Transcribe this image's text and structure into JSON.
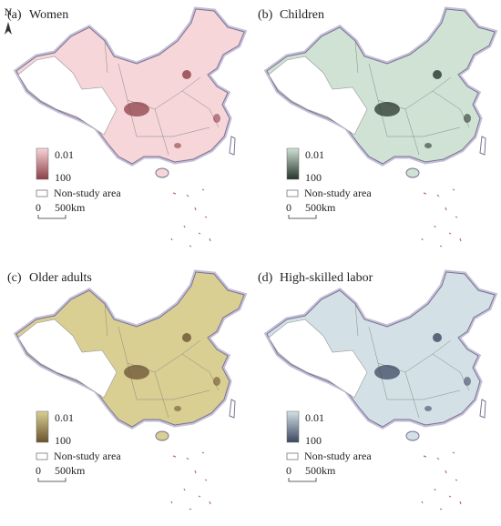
{
  "north_label": "N",
  "panels": [
    {
      "label": "(a)",
      "title": "Women",
      "legend": {
        "min": 0.01,
        "max": 100,
        "color_low": "#f6d6d8",
        "color_high": "#8c3f48"
      },
      "non_study": "Non-study area",
      "scale_bar": {
        "start": 0,
        "end": "500km"
      }
    },
    {
      "label": "(b)",
      "title": "Children",
      "legend": {
        "min": 0.01,
        "max": 100,
        "color_low": "#cfe2d4",
        "color_high": "#27352b"
      },
      "non_study": "Non-study area",
      "scale_bar": {
        "start": 0,
        "end": "500km"
      }
    },
    {
      "label": "(c)",
      "title": "Older adults",
      "legend": {
        "min": 0.01,
        "max": 100,
        "color_low": "#d9cf92",
        "color_high": "#6a5331"
      },
      "non_study": "Non-study area",
      "scale_bar": {
        "start": 0,
        "end": "500km"
      }
    },
    {
      "label": "(d)",
      "title": "High-skilled labor",
      "legend": {
        "min": 0.01,
        "max": 100,
        "color_low": "#d3e1e6",
        "color_high": "#3c4760"
      },
      "non_study": "Non-study area",
      "scale_bar": {
        "start": 0,
        "end": "500km"
      }
    }
  ]
}
